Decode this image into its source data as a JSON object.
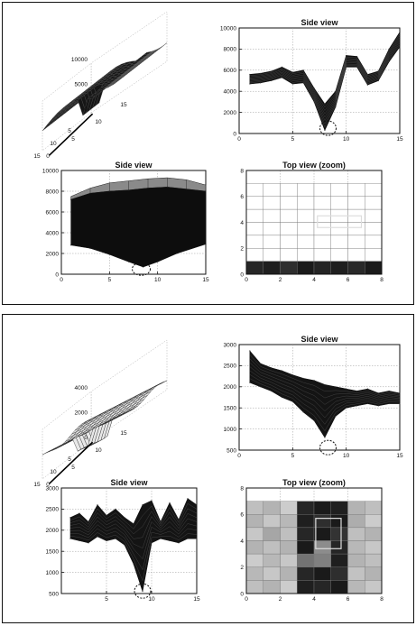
{
  "panels": [
    {
      "subplots": [
        {
          "type": "surface3d",
          "z_ticks": [
            "10000",
            "5000",
            "0"
          ],
          "x_ticks": [
            "5",
            "10",
            "15"
          ],
          "y_ticks": [
            "0",
            "5",
            "10",
            "15"
          ],
          "grid_rows": 15,
          "grid_cols": 15,
          "color": "#1a1a1a",
          "mesh_color": "#4a4a4a"
        },
        {
          "type": "line",
          "title": "Side view",
          "xlim": [
            0,
            15
          ],
          "ylim": [
            0,
            10000
          ],
          "x_ticks": [
            "0",
            "5",
            "10",
            "15"
          ],
          "y_ticks": [
            "0",
            "2000",
            "4000",
            "6000",
            "8000",
            "10000"
          ],
          "band_upper": [
            [
              1,
              5600
            ],
            [
              2,
              5700
            ],
            [
              3,
              5900
            ],
            [
              4,
              6300
            ],
            [
              5,
              5800
            ],
            [
              6,
              6000
            ],
            [
              7,
              4300
            ],
            [
              8,
              2800
            ],
            [
              9,
              4000
            ],
            [
              10,
              7400
            ],
            [
              11,
              7300
            ],
            [
              12,
              5600
            ],
            [
              13,
              5900
            ],
            [
              14,
              8000
            ],
            [
              15,
              9600
            ]
          ],
          "band_lower": [
            [
              1,
              4700
            ],
            [
              2,
              4800
            ],
            [
              3,
              5000
            ],
            [
              4,
              5300
            ],
            [
              5,
              4700
            ],
            [
              6,
              4800
            ],
            [
              7,
              3000
            ],
            [
              8,
              300
            ],
            [
              9,
              2500
            ],
            [
              10,
              6300
            ],
            [
              11,
              6300
            ],
            [
              12,
              4600
            ],
            [
              13,
              5000
            ],
            [
              14,
              6800
            ],
            [
              15,
              8200
            ]
          ],
          "marker": [
            8.3,
            500
          ]
        },
        {
          "type": "area",
          "title": "Side view",
          "xlim": [
            0,
            15
          ],
          "ylim": [
            0,
            10000
          ],
          "x_ticks": [
            "0",
            "5",
            "10",
            "15"
          ],
          "y_ticks": [
            "0",
            "2000",
            "4000",
            "6000",
            "8000",
            "10000"
          ],
          "top_mesh": [
            [
              1,
              7500
            ],
            [
              3,
              8300
            ],
            [
              5,
              8800
            ],
            [
              7,
              9000
            ],
            [
              9,
              9200
            ],
            [
              11,
              9300
            ],
            [
              13,
              9100
            ],
            [
              15,
              8600
            ]
          ],
          "top": [
            [
              1,
              7200
            ],
            [
              3,
              7800
            ],
            [
              5,
              8000
            ],
            [
              7,
              8100
            ],
            [
              9,
              8300
            ],
            [
              11,
              8400
            ],
            [
              13,
              8200
            ],
            [
              15,
              8000
            ]
          ],
          "bottom": [
            [
              1,
              2800
            ],
            [
              3,
              2500
            ],
            [
              5,
              1900
            ],
            [
              7,
              1200
            ],
            [
              8.5,
              700
            ],
            [
              10,
              1200
            ],
            [
              12,
              2000
            ],
            [
              15,
              2900
            ]
          ],
          "marker": [
            8.3,
            500
          ]
        },
        {
          "type": "heatmap",
          "title": "Top view (zoom)",
          "xlim": [
            0,
            8
          ],
          "ylim": [
            0,
            8
          ],
          "x_ticks": [
            "0",
            "2",
            "4",
            "6",
            "8"
          ],
          "y_ticks": [
            "0",
            "2",
            "4",
            "6",
            "8"
          ],
          "cells": [
            [
              1,
              1,
              1,
              1,
              1,
              1,
              1,
              1
            ],
            [
              1,
              1,
              1,
              1,
              1,
              1,
              1,
              1
            ],
            [
              1,
              1,
              1,
              1,
              1,
              1,
              1,
              1
            ],
            [
              1,
              1,
              1,
              1,
              1,
              1,
              1,
              1
            ],
            [
              1,
              1,
              1,
              1,
              1,
              1,
              1,
              1
            ],
            [
              1,
              1,
              1,
              1,
              1,
              1,
              1,
              1
            ],
            [
              0.15,
              0.12,
              0.18,
              0.1,
              0.14,
              0.12,
              0.16,
              0.1
            ]
          ],
          "box": [
            4.2,
            3.5,
            6.8,
            4.4
          ]
        }
      ]
    },
    {
      "subplots": [
        {
          "type": "surface3d",
          "z_ticks": [
            "4000",
            "2000",
            "0"
          ],
          "x_ticks": [
            "5",
            "10",
            "15"
          ],
          "y_ticks": [
            "0",
            "5",
            "10",
            "15"
          ],
          "grid_rows": 15,
          "grid_cols": 15,
          "color": "#2a2a2a",
          "mesh_color": "#2a2a2a"
        },
        {
          "type": "line",
          "title": "Side view",
          "xlim": [
            0,
            15
          ],
          "ylim": [
            500,
            3000
          ],
          "x_ticks": [
            "0",
            "5",
            "10",
            "15"
          ],
          "y_ticks": [
            "500",
            "1000",
            "1500",
            "2000",
            "2500",
            "3000"
          ],
          "band_upper": [
            [
              1,
              2850
            ],
            [
              2,
              2550
            ],
            [
              3,
              2450
            ],
            [
              4,
              2380
            ],
            [
              5,
              2280
            ],
            [
              6,
              2200
            ],
            [
              7,
              2150
            ],
            [
              8,
              2050
            ],
            [
              9,
              2000
            ],
            [
              10,
              1950
            ],
            [
              11,
              1900
            ],
            [
              12,
              1950
            ],
            [
              13,
              1850
            ],
            [
              14,
              1900
            ],
            [
              15,
              1850
            ]
          ],
          "band_lower": [
            [
              1,
              2100
            ],
            [
              2,
              2000
            ],
            [
              3,
              1900
            ],
            [
              4,
              1750
            ],
            [
              5,
              1650
            ],
            [
              6,
              1400
            ],
            [
              7,
              1200
            ],
            [
              8,
              800
            ],
            [
              9,
              1300
            ],
            [
              10,
              1500
            ],
            [
              11,
              1550
            ],
            [
              12,
              1600
            ],
            [
              13,
              1550
            ],
            [
              14,
              1600
            ],
            [
              15,
              1600
            ]
          ],
          "marker": [
            8.3,
            560
          ]
        },
        {
          "type": "line",
          "title": "Side view",
          "xlim": [
            0,
            15
          ],
          "ylim": [
            500,
            3000
          ],
          "x_ticks": [
            "",
            "5",
            "10",
            "15"
          ],
          "y_ticks": [
            "500",
            "1000",
            "1500",
            "2000",
            "2500",
            "3000"
          ],
          "band_upper": [
            [
              1,
              2300
            ],
            [
              2,
              2400
            ],
            [
              3,
              2200
            ],
            [
              4,
              2600
            ],
            [
              5,
              2350
            ],
            [
              6,
              2500
            ],
            [
              7,
              2300
            ],
            [
              8,
              2150
            ],
            [
              9,
              2600
            ],
            [
              10,
              2700
            ],
            [
              11,
              2200
            ],
            [
              12,
              2650
            ],
            [
              13,
              2250
            ],
            [
              14,
              2750
            ],
            [
              15,
              2600
            ]
          ],
          "band_lower": [
            [
              1,
              1800
            ],
            [
              2,
              1750
            ],
            [
              3,
              1700
            ],
            [
              4,
              1850
            ],
            [
              5,
              1750
            ],
            [
              6,
              1800
            ],
            [
              7,
              1650
            ],
            [
              8,
              1200
            ],
            [
              9,
              550
            ],
            [
              10,
              1700
            ],
            [
              11,
              1800
            ],
            [
              12,
              1750
            ],
            [
              13,
              1700
            ],
            [
              14,
              1800
            ],
            [
              15,
              1800
            ]
          ],
          "marker": [
            9,
            560
          ]
        },
        {
          "type": "heatmap",
          "title": "Top view (zoom)",
          "xlim": [
            0,
            8
          ],
          "ylim": [
            0,
            8
          ],
          "x_ticks": [
            "0",
            "2",
            "4",
            "6",
            "8"
          ],
          "y_ticks": [
            "0",
            "2",
            "4",
            "6",
            "8"
          ],
          "cells": [
            [
              0.75,
              0.7,
              0.8,
              0.15,
              0.1,
              0.12,
              0.7,
              0.75
            ],
            [
              0.7,
              0.78,
              0.72,
              0.12,
              0.18,
              0.1,
              0.68,
              0.8
            ],
            [
              0.78,
              0.65,
              0.75,
              0.15,
              0.1,
              0.2,
              0.75,
              0.7
            ],
            [
              0.7,
              0.75,
              0.7,
              0.1,
              0.55,
              0.15,
              0.72,
              0.78
            ],
            [
              0.8,
              0.72,
              0.78,
              0.45,
              0.5,
              0.12,
              0.7,
              0.75
            ],
            [
              0.72,
              0.78,
              0.7,
              0.15,
              0.1,
              0.18,
              0.76,
              0.7
            ],
            [
              0.75,
              0.7,
              0.8,
              0.12,
              0.15,
              0.1,
              0.72,
              0.78
            ]
          ],
          "box": [
            4.1,
            2.3,
            5.6,
            4.6
          ]
        }
      ]
    }
  ]
}
